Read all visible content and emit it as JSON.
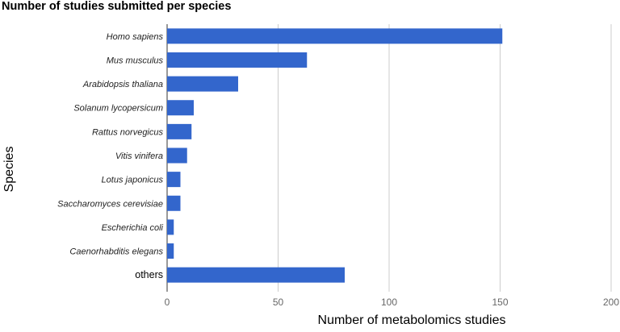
{
  "chart_data": {
    "type": "bar",
    "orientation": "horizontal",
    "title": "Number of studies submitted per species",
    "xlabel": "Number of metabolomics studies",
    "ylabel": "Species",
    "categories": [
      "Homo sapiens",
      "Mus musculus",
      "Arabidopsis thaliana",
      "Solanum lycopersicum",
      "Rattus norvegicus",
      "Vitis vinifera",
      "Lotus japonicus",
      "Saccharomyces cerevisiae",
      "Escherichia coli",
      "Caenorhabditis elegans",
      "others"
    ],
    "italic_categories": [
      true,
      true,
      true,
      true,
      true,
      true,
      true,
      true,
      true,
      true,
      false
    ],
    "values": [
      151,
      63,
      32,
      12,
      11,
      9,
      6,
      6,
      3,
      3,
      80
    ],
    "xlim": [
      0,
      200
    ],
    "xticks": [
      0,
      50,
      100,
      150,
      200
    ],
    "grid": "vertical",
    "bar_color": "#3366cc",
    "grid_color": "#cccccc",
    "legend": "none"
  }
}
